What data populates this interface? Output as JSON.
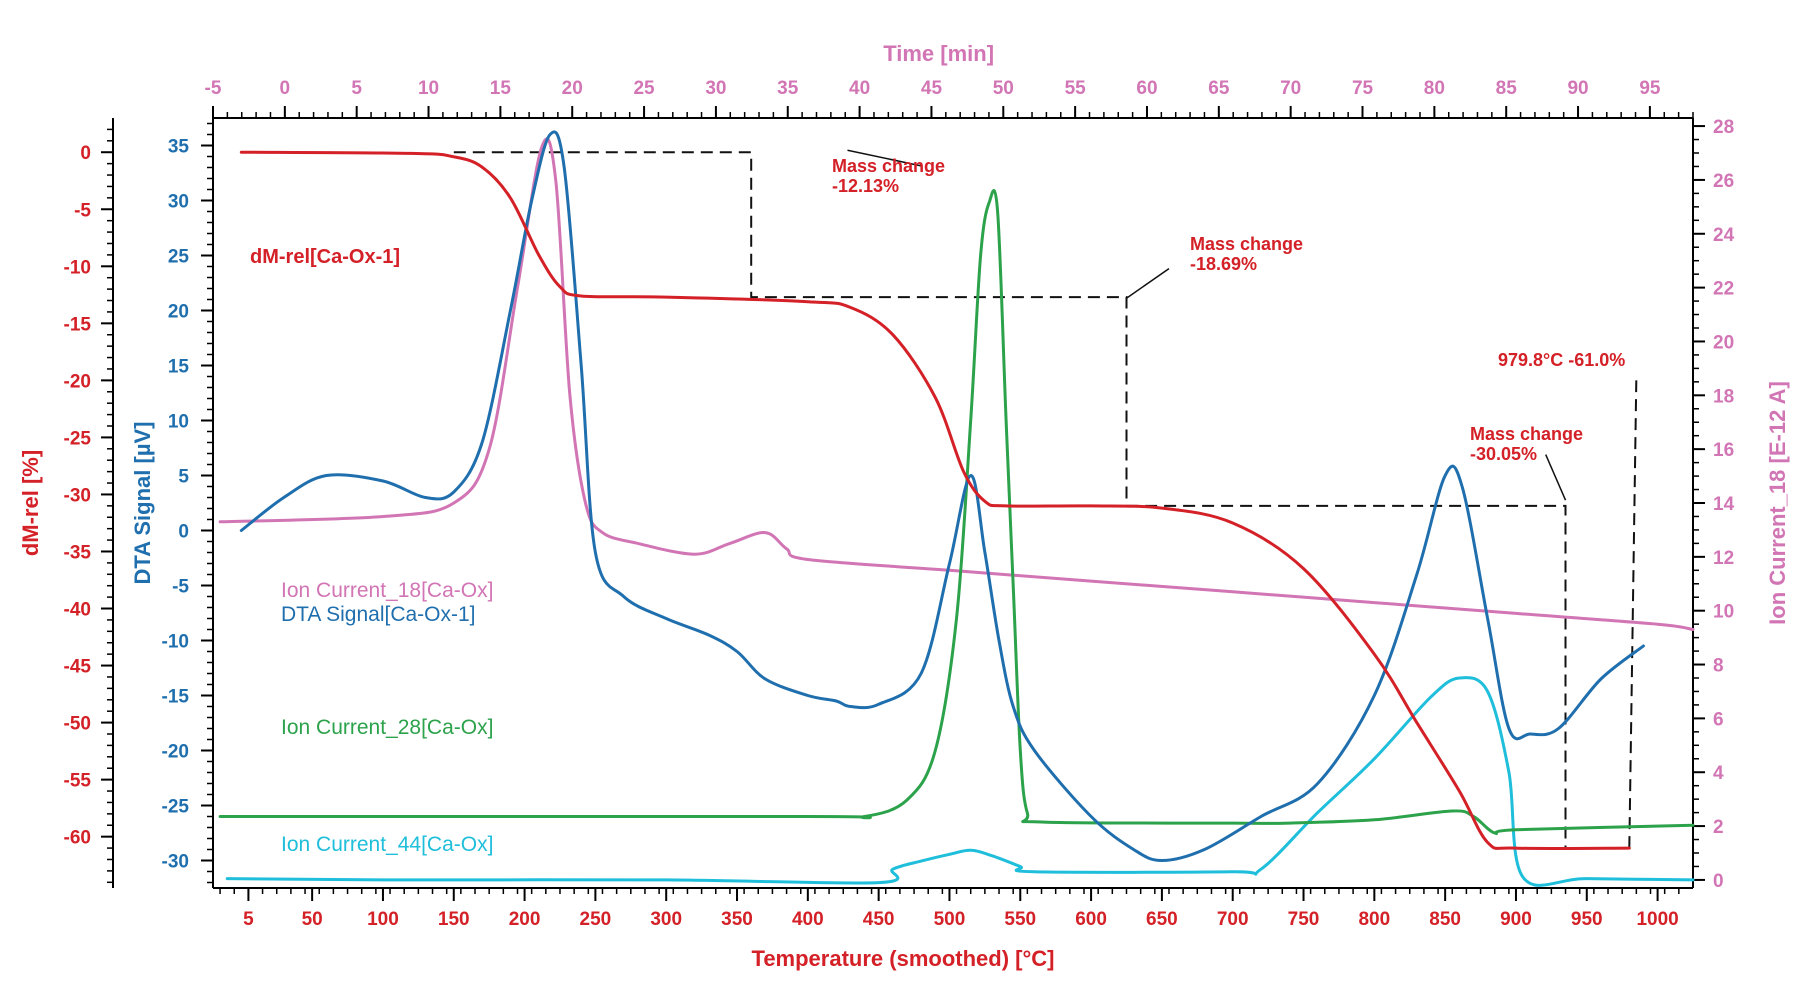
{
  "chart_data": {
    "type": "line",
    "axes": {
      "bottom": {
        "label": "Temperature (smoothed) [°C]",
        "range": [
          -20,
          1025
        ],
        "ticks": [
          5,
          50,
          100,
          150,
          200,
          250,
          300,
          350,
          400,
          450,
          500,
          550,
          600,
          650,
          700,
          750,
          800,
          850,
          900,
          950,
          1000
        ],
        "color": "#d42027"
      },
      "top": {
        "label": "Time [min]",
        "range": [
          -5,
          98
        ],
        "ticks": [
          -5,
          0,
          5,
          10,
          15,
          20,
          25,
          30,
          35,
          40,
          45,
          50,
          55,
          60,
          65,
          70,
          75,
          80,
          85,
          90,
          95
        ],
        "color": "#d275b5"
      },
      "left_outer": {
        "label": "dM-rel [%]",
        "range": [
          -64.5,
          3
        ],
        "ticks": [
          0,
          -5,
          -10,
          -15,
          -20,
          -25,
          -30,
          -35,
          -40,
          -45,
          -50,
          -55,
          -60
        ],
        "color": "#d42027"
      },
      "left_inner": {
        "label": "DTA Signal [µV]",
        "range": [
          -32.5,
          37.5
        ],
        "ticks": [
          35,
          30,
          25,
          20,
          15,
          10,
          5,
          0,
          -5,
          -10,
          -15,
          -20,
          -25,
          -30
        ],
        "color": "#1f6fae"
      },
      "right": {
        "label": "Ion Current_18 [E-12 A]",
        "range": [
          -0.3,
          28.3
        ],
        "ticks": [
          28,
          26,
          24,
          22,
          20,
          18,
          16,
          14,
          12,
          10,
          8,
          6,
          4,
          2,
          0
        ],
        "color": "#d275b5"
      }
    },
    "series": [
      {
        "name": "dM-rel[Ca-Ox-1]",
        "axis": "left_outer",
        "color": "#d42027",
        "points": [
          [
            0,
            0
          ],
          [
            120,
            -0.1
          ],
          [
            150,
            -0.4
          ],
          [
            170,
            -1.3
          ],
          [
            190,
            -4
          ],
          [
            210,
            -9
          ],
          [
            225,
            -11.8
          ],
          [
            240,
            -12.6
          ],
          [
            300,
            -12.7
          ],
          [
            400,
            -13.1
          ],
          [
            430,
            -13.6
          ],
          [
            460,
            -16
          ],
          [
            490,
            -21.5
          ],
          [
            510,
            -28
          ],
          [
            525,
            -30.6
          ],
          [
            540,
            -31.0
          ],
          [
            600,
            -31.0
          ],
          [
            650,
            -31.2
          ],
          [
            700,
            -32.5
          ],
          [
            750,
            -36.5
          ],
          [
            800,
            -44
          ],
          [
            830,
            -50
          ],
          [
            860,
            -56
          ],
          [
            880,
            -60.5
          ],
          [
            900,
            -61
          ],
          [
            980,
            -61
          ]
        ]
      },
      {
        "name": "DTA Signal[Ca-Ox-1]",
        "axis": "left_inner",
        "color": "#1f6fae",
        "points": [
          [
            0,
            0
          ],
          [
            30,
            3
          ],
          [
            60,
            5
          ],
          [
            100,
            4.5
          ],
          [
            130,
            3
          ],
          [
            150,
            3.5
          ],
          [
            170,
            8
          ],
          [
            190,
            20
          ],
          [
            205,
            30
          ],
          [
            218,
            36
          ],
          [
            228,
            33
          ],
          [
            240,
            15
          ],
          [
            250,
            -2
          ],
          [
            270,
            -6
          ],
          [
            300,
            -8
          ],
          [
            330,
            -9.5
          ],
          [
            350,
            -11
          ],
          [
            370,
            -13.5
          ],
          [
            400,
            -15
          ],
          [
            420,
            -15.5
          ],
          [
            430,
            -16
          ],
          [
            450,
            -15.8
          ],
          [
            480,
            -13
          ],
          [
            500,
            -3
          ],
          [
            515,
            5
          ],
          [
            525,
            -2
          ],
          [
            535,
            -10
          ],
          [
            545,
            -16
          ],
          [
            560,
            -20
          ],
          [
            600,
            -26
          ],
          [
            630,
            -29
          ],
          [
            650,
            -30
          ],
          [
            680,
            -29
          ],
          [
            720,
            -26
          ],
          [
            760,
            -23
          ],
          [
            800,
            -15
          ],
          [
            830,
            -4
          ],
          [
            850,
            5
          ],
          [
            862,
            4
          ],
          [
            880,
            -8
          ],
          [
            895,
            -18
          ],
          [
            910,
            -18.5
          ],
          [
            930,
            -18
          ],
          [
            960,
            -13.5
          ],
          [
            990,
            -10.5
          ]
        ]
      },
      {
        "name": "Ion Current_18[Ca-Ox]",
        "axis": "right",
        "color": "#d275b5",
        "points": [
          [
            -15,
            13.3
          ],
          [
            100,
            13.5
          ],
          [
            150,
            14
          ],
          [
            175,
            16
          ],
          [
            195,
            22
          ],
          [
            212,
            27.2
          ],
          [
            222,
            26
          ],
          [
            232,
            18
          ],
          [
            243,
            14
          ],
          [
            255,
            12.9
          ],
          [
            280,
            12.5
          ],
          [
            320,
            12.1
          ],
          [
            345,
            12.5
          ],
          [
            370,
            12.9
          ],
          [
            385,
            12.3
          ],
          [
            400,
            11.9
          ],
          [
            500,
            11.5
          ],
          [
            600,
            11.1
          ],
          [
            700,
            10.7
          ],
          [
            800,
            10.3
          ],
          [
            900,
            9.9
          ],
          [
            1000,
            9.5
          ],
          [
            1025,
            9.3
          ]
        ]
      },
      {
        "name": "Ion Current_28[Ca-Ox]",
        "axis": "left_inner",
        "color": "#2ca24b",
        "points": [
          [
            -15,
            -26
          ],
          [
            400,
            -26
          ],
          [
            440,
            -26
          ],
          [
            470,
            -24.5
          ],
          [
            490,
            -20
          ],
          [
            505,
            -8
          ],
          [
            515,
            10
          ],
          [
            522,
            25
          ],
          [
            528,
            29.8
          ],
          [
            534,
            29
          ],
          [
            540,
            10
          ],
          [
            545,
            -5
          ],
          [
            550,
            -20
          ],
          [
            555,
            -25.7
          ],
          [
            565,
            -26.5
          ],
          [
            700,
            -26.6
          ],
          [
            740,
            -26.6
          ],
          [
            800,
            -26.3
          ],
          [
            855,
            -25.5
          ],
          [
            870,
            -26
          ],
          [
            885,
            -27.5
          ],
          [
            900,
            -27.2
          ],
          [
            1025,
            -26.8
          ]
        ]
      },
      {
        "name": "Ion Current_44[Ca-Ox]",
        "axis": "right",
        "color": "#1fbedb",
        "points": [
          [
            -10,
            0.05
          ],
          [
            100,
            0
          ],
          [
            300,
            0
          ],
          [
            450,
            -0.1
          ],
          [
            460,
            0.4
          ],
          [
            480,
            0.7
          ],
          [
            500,
            0.95
          ],
          [
            515,
            1.1
          ],
          [
            530,
            0.9
          ],
          [
            550,
            0.5
          ],
          [
            560,
            0.3
          ],
          [
            700,
            0.3
          ],
          [
            720,
            0.4
          ],
          [
            760,
            2.5
          ],
          [
            800,
            4.5
          ],
          [
            840,
            6.8
          ],
          [
            860,
            7.5
          ],
          [
            880,
            7
          ],
          [
            895,
            4
          ],
          [
            905,
            0.1
          ],
          [
            950,
            0.05
          ],
          [
            1025,
            0
          ]
        ]
      }
    ],
    "annotations": [
      {
        "text": "Mass change",
        "value": "-12.13%"
      },
      {
        "text": "Mass change",
        "value": "-18.69%"
      },
      {
        "text": "Mass change",
        "value": "-30.05%"
      },
      {
        "text": "979.8°C  -61.0%"
      }
    ],
    "step_lines": [
      [
        [
          150,
          0
        ],
        [
          360,
          0
        ],
        [
          360,
          -12.7
        ],
        [
          625,
          -12.7
        ],
        [
          625,
          -31.0
        ],
        [
          935,
          -31.0
        ],
        [
          935,
          -61
        ]
      ],
      [
        [
          980,
          -61
        ],
        [
          985,
          -20
        ]
      ]
    ],
    "legend_labels": {
      "dm": "dM-rel[Ca-Ox-1]",
      "ion18": "Ion Current_18[Ca-Ox]",
      "dta": "DTA Signal[Ca-Ox-1]",
      "ion28": "Ion Current_28[Ca-Ox]",
      "ion44": "Ion Current_44[Ca-Ox]"
    }
  }
}
